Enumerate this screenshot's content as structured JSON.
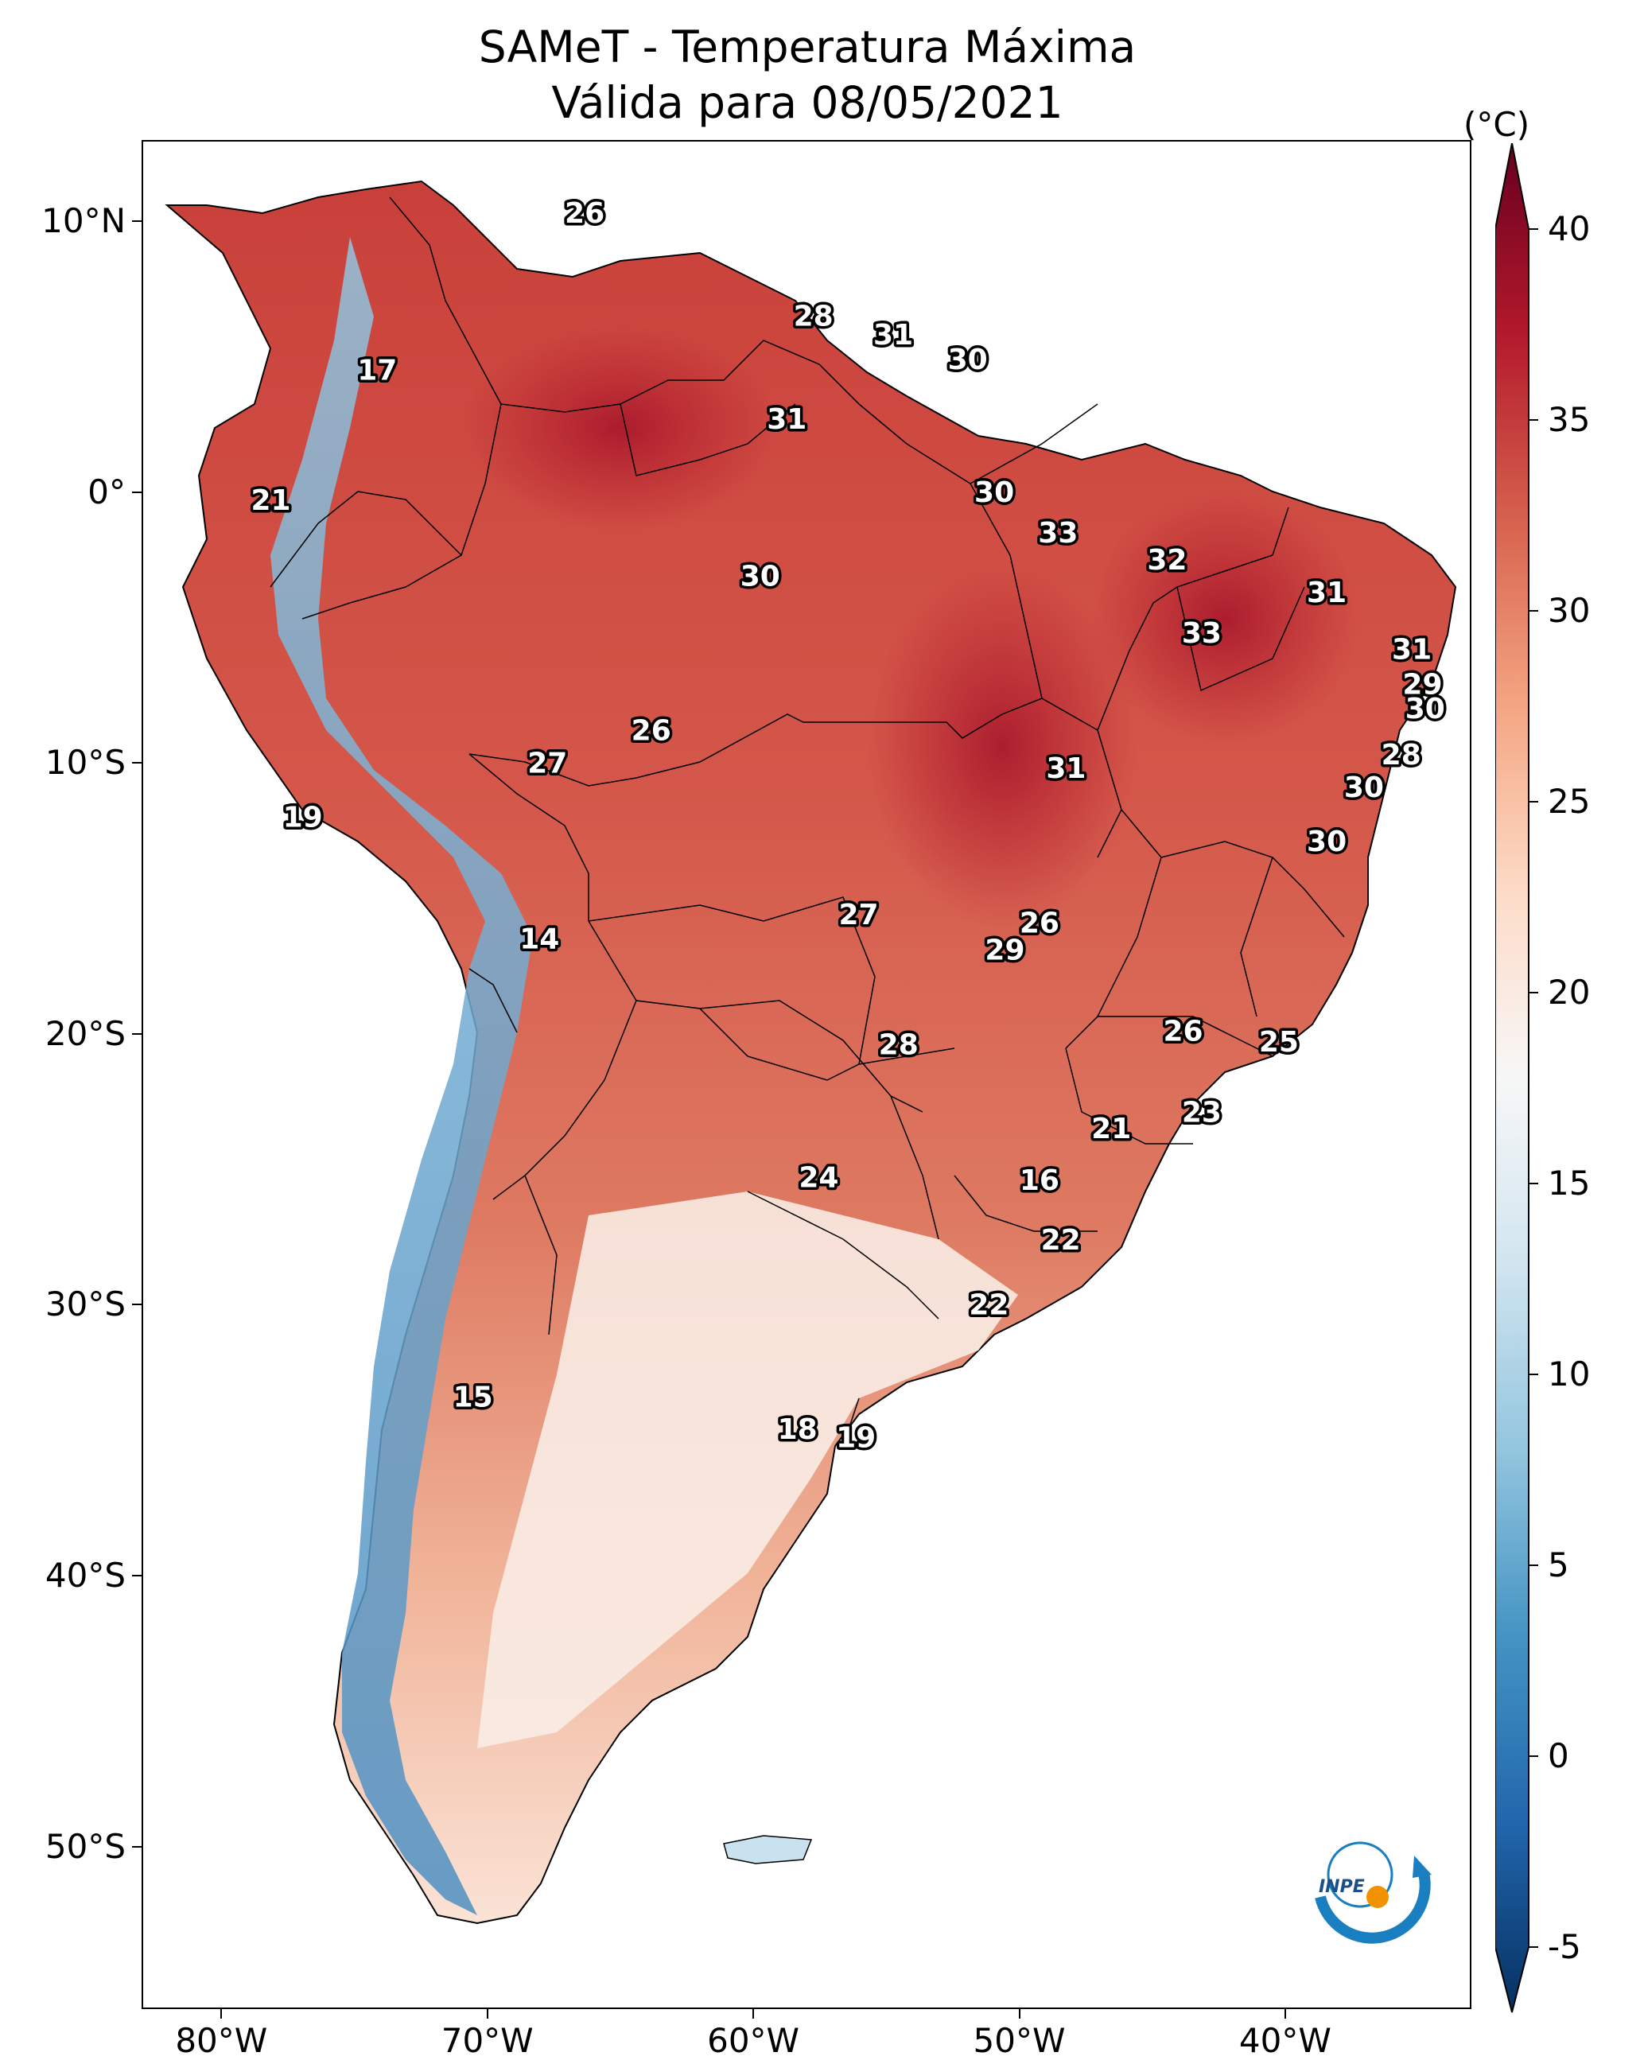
{
  "title": {
    "line1": "SAMeT - Temperatura Máxima",
    "line2": "Válida para 08/05/2021"
  },
  "axes": {
    "lat_ticks": [
      {
        "value": 10,
        "label": "10°N"
      },
      {
        "value": 0,
        "label": "0°"
      },
      {
        "value": -10,
        "label": "10°S"
      },
      {
        "value": -20,
        "label": "20°S"
      },
      {
        "value": -30,
        "label": "30°S"
      },
      {
        "value": -40,
        "label": "40°S"
      },
      {
        "value": -50,
        "label": "50°S"
      }
    ],
    "lon_ticks": [
      {
        "value": -80,
        "label": "80°W"
      },
      {
        "value": -70,
        "label": "70°W"
      },
      {
        "value": -60,
        "label": "60°W"
      },
      {
        "value": -50,
        "label": "50°W"
      },
      {
        "value": -40,
        "label": "40°W"
      }
    ],
    "lon_range": [
      -83,
      -33
    ],
    "lat_range": [
      -56,
      13
    ]
  },
  "colorbar": {
    "unit": "(°C)",
    "min": -5,
    "max": 40,
    "ticks": [
      {
        "value": 40,
        "label": "40"
      },
      {
        "value": 35,
        "label": "35"
      },
      {
        "value": 30,
        "label": "30"
      },
      {
        "value": 25,
        "label": "25"
      },
      {
        "value": 20,
        "label": "20"
      },
      {
        "value": 15,
        "label": "15"
      },
      {
        "value": 10,
        "label": "10"
      },
      {
        "value": 5,
        "label": "5"
      },
      {
        "value": 0,
        "label": "0"
      },
      {
        "value": -5,
        "label": "-5"
      }
    ],
    "colors": [
      "#053061",
      "#2166ac",
      "#4393c3",
      "#92c5de",
      "#d1e5f0",
      "#f7f7f7",
      "#fddbc7",
      "#f4a582",
      "#d6604d",
      "#b2182b",
      "#67001f"
    ]
  },
  "chart_data": {
    "type": "heatmap",
    "title": "SAMeT - Temperatura Máxima",
    "subtitle": "Válida para 08/05/2021",
    "variable": "Temperatura Máxima",
    "units": "°C",
    "region": "South America",
    "value_range": [
      -5,
      40
    ],
    "station_labels": [
      {
        "lon": -66.4,
        "lat": 10.3,
        "value": 26
      },
      {
        "lon": -74.2,
        "lat": 4.5,
        "value": 17
      },
      {
        "lon": -78.2,
        "lat": -0.3,
        "value": 21
      },
      {
        "lon": -57.8,
        "lat": 6.5,
        "value": 28
      },
      {
        "lon": -54.8,
        "lat": 5.8,
        "value": 31
      },
      {
        "lon": -52.0,
        "lat": 4.9,
        "value": 30
      },
      {
        "lon": -58.8,
        "lat": 2.7,
        "value": 31
      },
      {
        "lon": -51.0,
        "lat": 0.0,
        "value": 30
      },
      {
        "lon": -48.6,
        "lat": -1.5,
        "value": 33
      },
      {
        "lon": -44.5,
        "lat": -2.5,
        "value": 32
      },
      {
        "lon": -38.5,
        "lat": -3.7,
        "value": 31
      },
      {
        "lon": -59.8,
        "lat": -3.1,
        "value": 30
      },
      {
        "lon": -43.2,
        "lat": -5.2,
        "value": 33
      },
      {
        "lon": -35.3,
        "lat": -5.8,
        "value": 31
      },
      {
        "lon": -34.9,
        "lat": -7.1,
        "value": 29
      },
      {
        "lon": -34.8,
        "lat": -8.0,
        "value": 30
      },
      {
        "lon": -35.7,
        "lat": -9.7,
        "value": 28
      },
      {
        "lon": -37.1,
        "lat": -10.9,
        "value": 30
      },
      {
        "lon": -38.5,
        "lat": -12.9,
        "value": 30
      },
      {
        "lon": -63.9,
        "lat": -8.8,
        "value": 26
      },
      {
        "lon": -67.8,
        "lat": -10.0,
        "value": 27
      },
      {
        "lon": -48.3,
        "lat": -10.2,
        "value": 31
      },
      {
        "lon": -77.0,
        "lat": -12.0,
        "value": 19
      },
      {
        "lon": -68.1,
        "lat": -16.5,
        "value": 14
      },
      {
        "lon": -56.1,
        "lat": -15.6,
        "value": 27
      },
      {
        "lon": -49.3,
        "lat": -15.9,
        "value": 26
      },
      {
        "lon": -50.6,
        "lat": -16.9,
        "value": 29
      },
      {
        "lon": -43.9,
        "lat": -19.9,
        "value": 26
      },
      {
        "lon": -40.3,
        "lat": -20.3,
        "value": 25
      },
      {
        "lon": -54.6,
        "lat": -20.4,
        "value": 28
      },
      {
        "lon": -43.2,
        "lat": -22.9,
        "value": 23
      },
      {
        "lon": -46.6,
        "lat": -23.5,
        "value": 21
      },
      {
        "lon": -57.6,
        "lat": -25.3,
        "value": 24
      },
      {
        "lon": -49.3,
        "lat": -25.4,
        "value": 16
      },
      {
        "lon": -48.5,
        "lat": -27.6,
        "value": 22
      },
      {
        "lon": -51.2,
        "lat": -30.0,
        "value": 22
      },
      {
        "lon": -70.6,
        "lat": -33.4,
        "value": 15
      },
      {
        "lon": -58.4,
        "lat": -34.6,
        "value": 18
      },
      {
        "lon": -56.2,
        "lat": -34.9,
        "value": 19
      }
    ]
  },
  "logo": {
    "text": "INPE"
  }
}
